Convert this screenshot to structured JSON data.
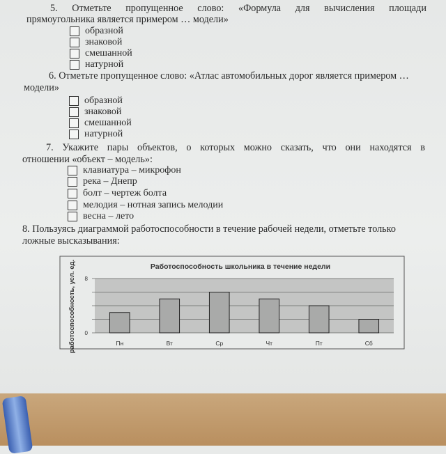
{
  "questions": [
    {
      "number": "5.",
      "line1": [
        "Отметьте",
        "пропущенное",
        "слово:",
        "«Формула",
        "для",
        "вычисления",
        "площади"
      ],
      "line2": "прямоугольника является примером … модели»",
      "options": [
        "образной",
        "знаковой",
        "смешанной",
        "натурной"
      ]
    },
    {
      "number": "6.",
      "line1_text": "Отметьте пропущенное слово: «Атлас автомобильных дорог является примером …",
      "line2": "модели»",
      "options": [
        "образной",
        "знаковой",
        "смешанной",
        "натурной"
      ]
    },
    {
      "number": "7.",
      "line1": [
        "Укажите",
        "пары",
        "объектов,",
        "о",
        "которых",
        "можно",
        "сказать,",
        "что",
        "они",
        "находятся",
        "в"
      ],
      "line2": "отношении «объект – модель»:",
      "options": [
        "клавиатура – микрофон",
        "река – Днепр",
        "болт – чертеж болта",
        "мелодия – нотная запись мелодии",
        "весна – лето"
      ]
    },
    {
      "number": "8.",
      "line1_text": "Пользуясь диаграммой работоспособности в течение рабочей недели, отметьте только",
      "line2": "ложные высказывания:"
    }
  ],
  "chart_data": {
    "type": "bar",
    "title": "Работоспособность школьника в течение недели",
    "ylabel": "работоспособность, усл. ед.",
    "xlabel": "",
    "categories": [
      "Пн",
      "Вт",
      "Ср",
      "Чт",
      "Пт",
      "Сб"
    ],
    "values": [
      3,
      5,
      6,
      5,
      4,
      2
    ],
    "ylim": [
      0,
      8
    ],
    "yticks_labeled": [
      "0",
      "8"
    ],
    "grid": true,
    "colors": {
      "bar": "#a9aaa9",
      "plot_bg": "#c4c5c4"
    }
  }
}
